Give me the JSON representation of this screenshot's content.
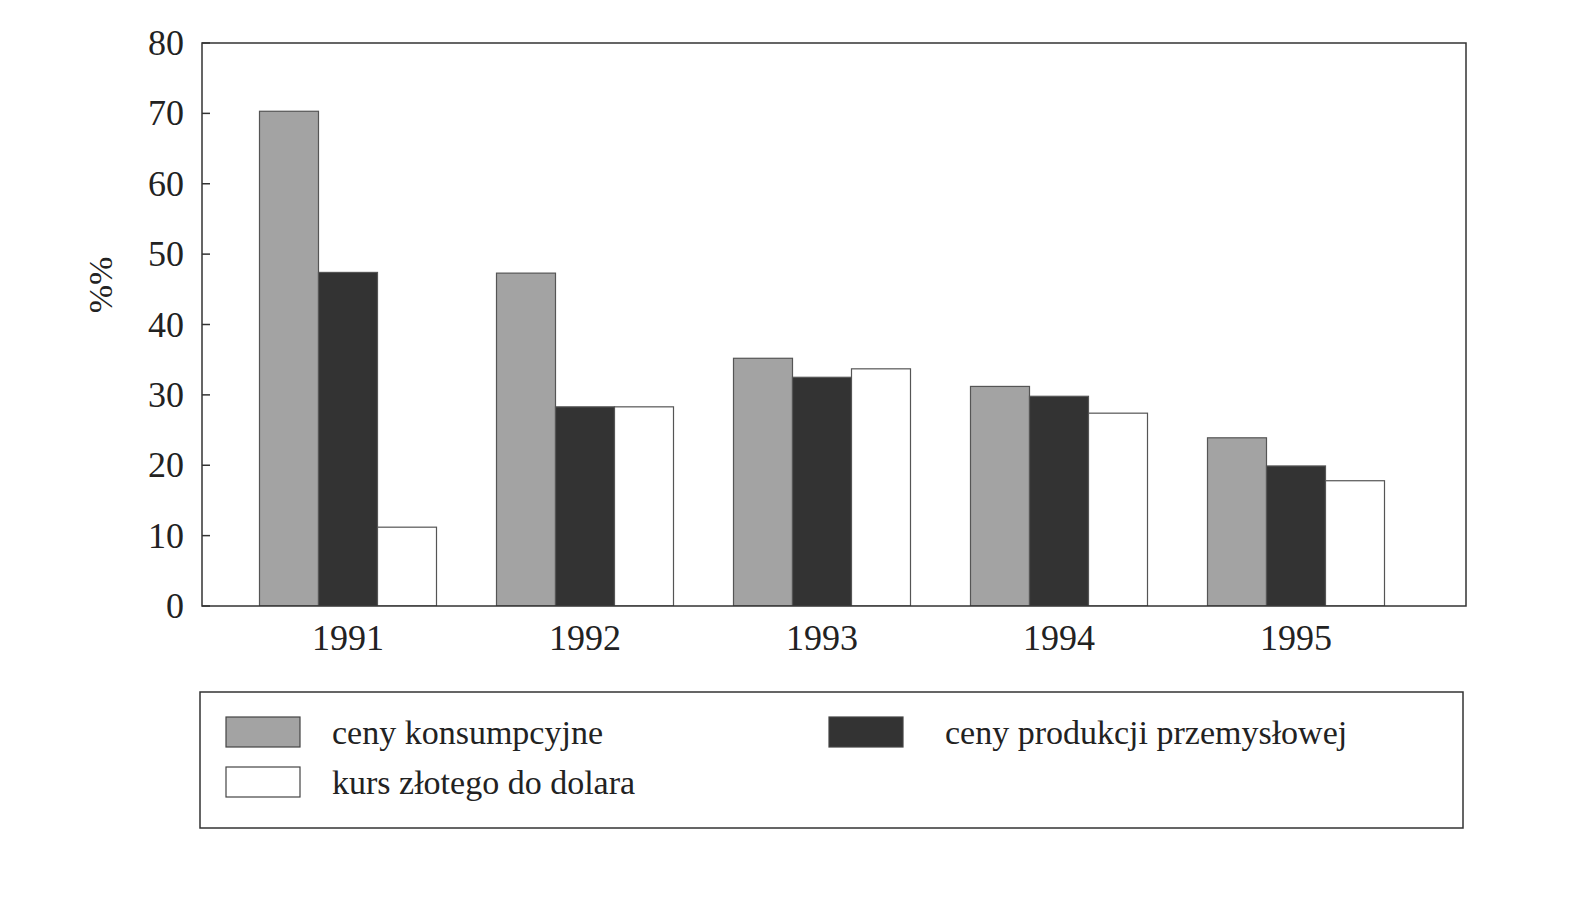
{
  "chart_data": {
    "type": "bar",
    "y_label": "%%",
    "categories": [
      "1991",
      "1992",
      "1993",
      "1994",
      "1995"
    ],
    "series": [
      {
        "name": "ceny konsumpcyjne",
        "color": "#a3a3a3",
        "values": [
          70.3,
          47.3,
          35.2,
          31.2,
          23.9
        ]
      },
      {
        "name": "ceny produkcji przemysłowej",
        "color": "#333333",
        "values": [
          47.4,
          28.3,
          32.5,
          29.8,
          19.9
        ]
      },
      {
        "name": "kurs złotego do dolara",
        "color": "#ffffff",
        "values": [
          11.2,
          28.3,
          33.7,
          27.4,
          17.8
        ]
      }
    ],
    "ylim": [
      0,
      80
    ],
    "yticks": [
      0,
      10,
      20,
      30,
      40,
      50,
      60,
      70,
      80
    ],
    "grid": false,
    "legend": "bottom"
  }
}
